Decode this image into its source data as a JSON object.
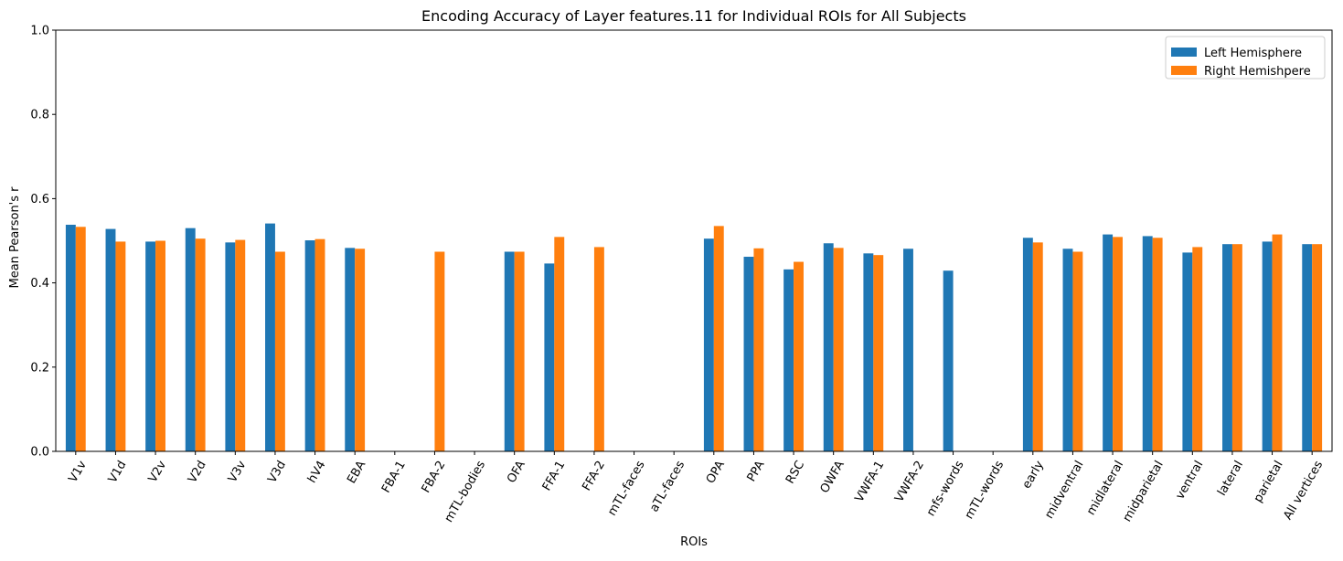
{
  "chart_data": {
    "type": "bar",
    "title": "Encoding Accuracy of Layer features.11 for Individual ROIs for All Subjects",
    "xlabel": "ROIs",
    "ylabel": "Mean Pearson's r",
    "ylim": [
      0,
      1.0
    ],
    "yticks": [
      "0.0",
      "0.2",
      "0.4",
      "0.6",
      "0.8",
      "1.0"
    ],
    "legend_position": "top-right",
    "grid": false,
    "categories": [
      "V1v",
      "V1d",
      "V2v",
      "V2d",
      "V3v",
      "V3d",
      "hV4",
      "EBA",
      "FBA-1",
      "FBA-2",
      "mTL-bodies",
      "OFA",
      "FFA-1",
      "FFA-2",
      "mTL-faces",
      "aTL-faces",
      "OPA",
      "PPA",
      "RSC",
      "OWFA",
      "VWFA-1",
      "VWFA-2",
      "mfs-words",
      "mTL-words",
      "early",
      "midventral",
      "midlateral",
      "midparietal",
      "ventral",
      "lateral",
      "parietal",
      "All vertices"
    ],
    "series": [
      {
        "name": "Left Hemisphere",
        "color": "#1f77b4",
        "values": [
          0.538,
          0.528,
          0.498,
          0.53,
          0.496,
          0.541,
          0.501,
          0.483,
          null,
          null,
          null,
          0.474,
          0.446,
          null,
          null,
          null,
          0.505,
          0.462,
          0.432,
          0.494,
          0.47,
          0.481,
          0.429,
          null,
          0.507,
          0.481,
          0.515,
          0.511,
          0.472,
          0.492,
          0.498,
          0.492
        ]
      },
      {
        "name": "Right Hemishpere",
        "color": "#ff7f0e",
        "values": [
          0.533,
          0.498,
          0.5,
          0.505,
          0.502,
          0.474,
          0.504,
          0.481,
          null,
          0.474,
          null,
          0.474,
          0.509,
          0.485,
          null,
          null,
          0.535,
          0.482,
          0.45,
          0.483,
          0.466,
          null,
          null,
          null,
          0.496,
          0.474,
          0.509,
          0.507,
          0.485,
          0.492,
          0.515,
          0.492
        ]
      }
    ]
  }
}
